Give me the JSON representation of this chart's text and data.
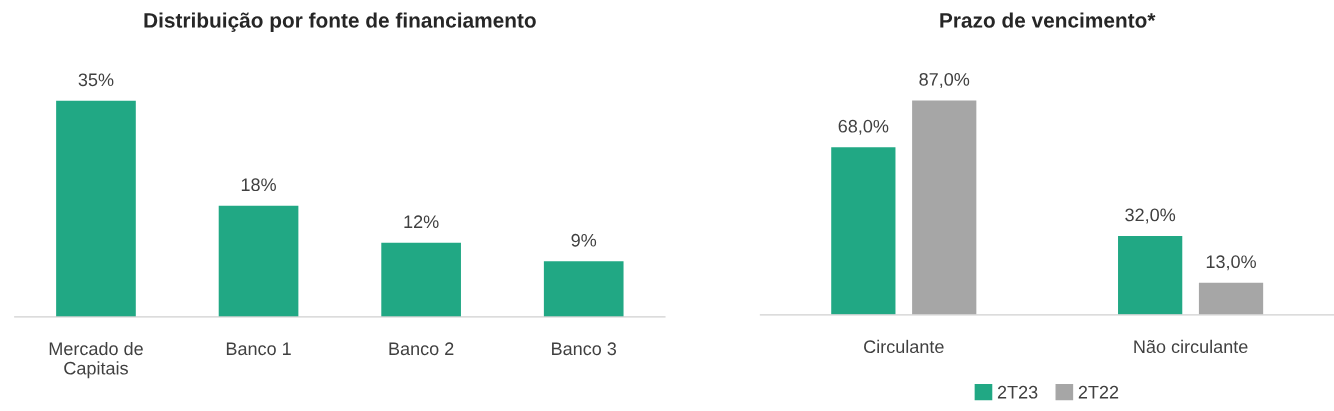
{
  "chart_data": [
    {
      "type": "bar",
      "title": "Distribuição por fonte de financiamento",
      "categories": [
        "Mercado de\nCapitais",
        "Banco 1",
        "Banco 2",
        "Banco 3"
      ],
      "values": [
        35,
        18,
        12,
        9
      ],
      "value_labels": [
        "35%",
        "18%",
        "12%",
        "9%"
      ],
      "color": "#21a884",
      "grid": false,
      "legend": false
    },
    {
      "type": "bar",
      "title": "Prazo de vencimento*",
      "categories": [
        "Circulante",
        "Não circulante"
      ],
      "legend": "bottom",
      "grid": false,
      "series": [
        {
          "name": "2T23",
          "color": "#21a884",
          "values": [
            68.0,
            32.0
          ],
          "value_labels": [
            "68,0%",
            "32,0%"
          ]
        },
        {
          "name": "2T22",
          "color": "#a6a6a6",
          "values": [
            87.0,
            13.0
          ],
          "value_labels": [
            "87,0%",
            "13,0%"
          ]
        }
      ]
    }
  ]
}
